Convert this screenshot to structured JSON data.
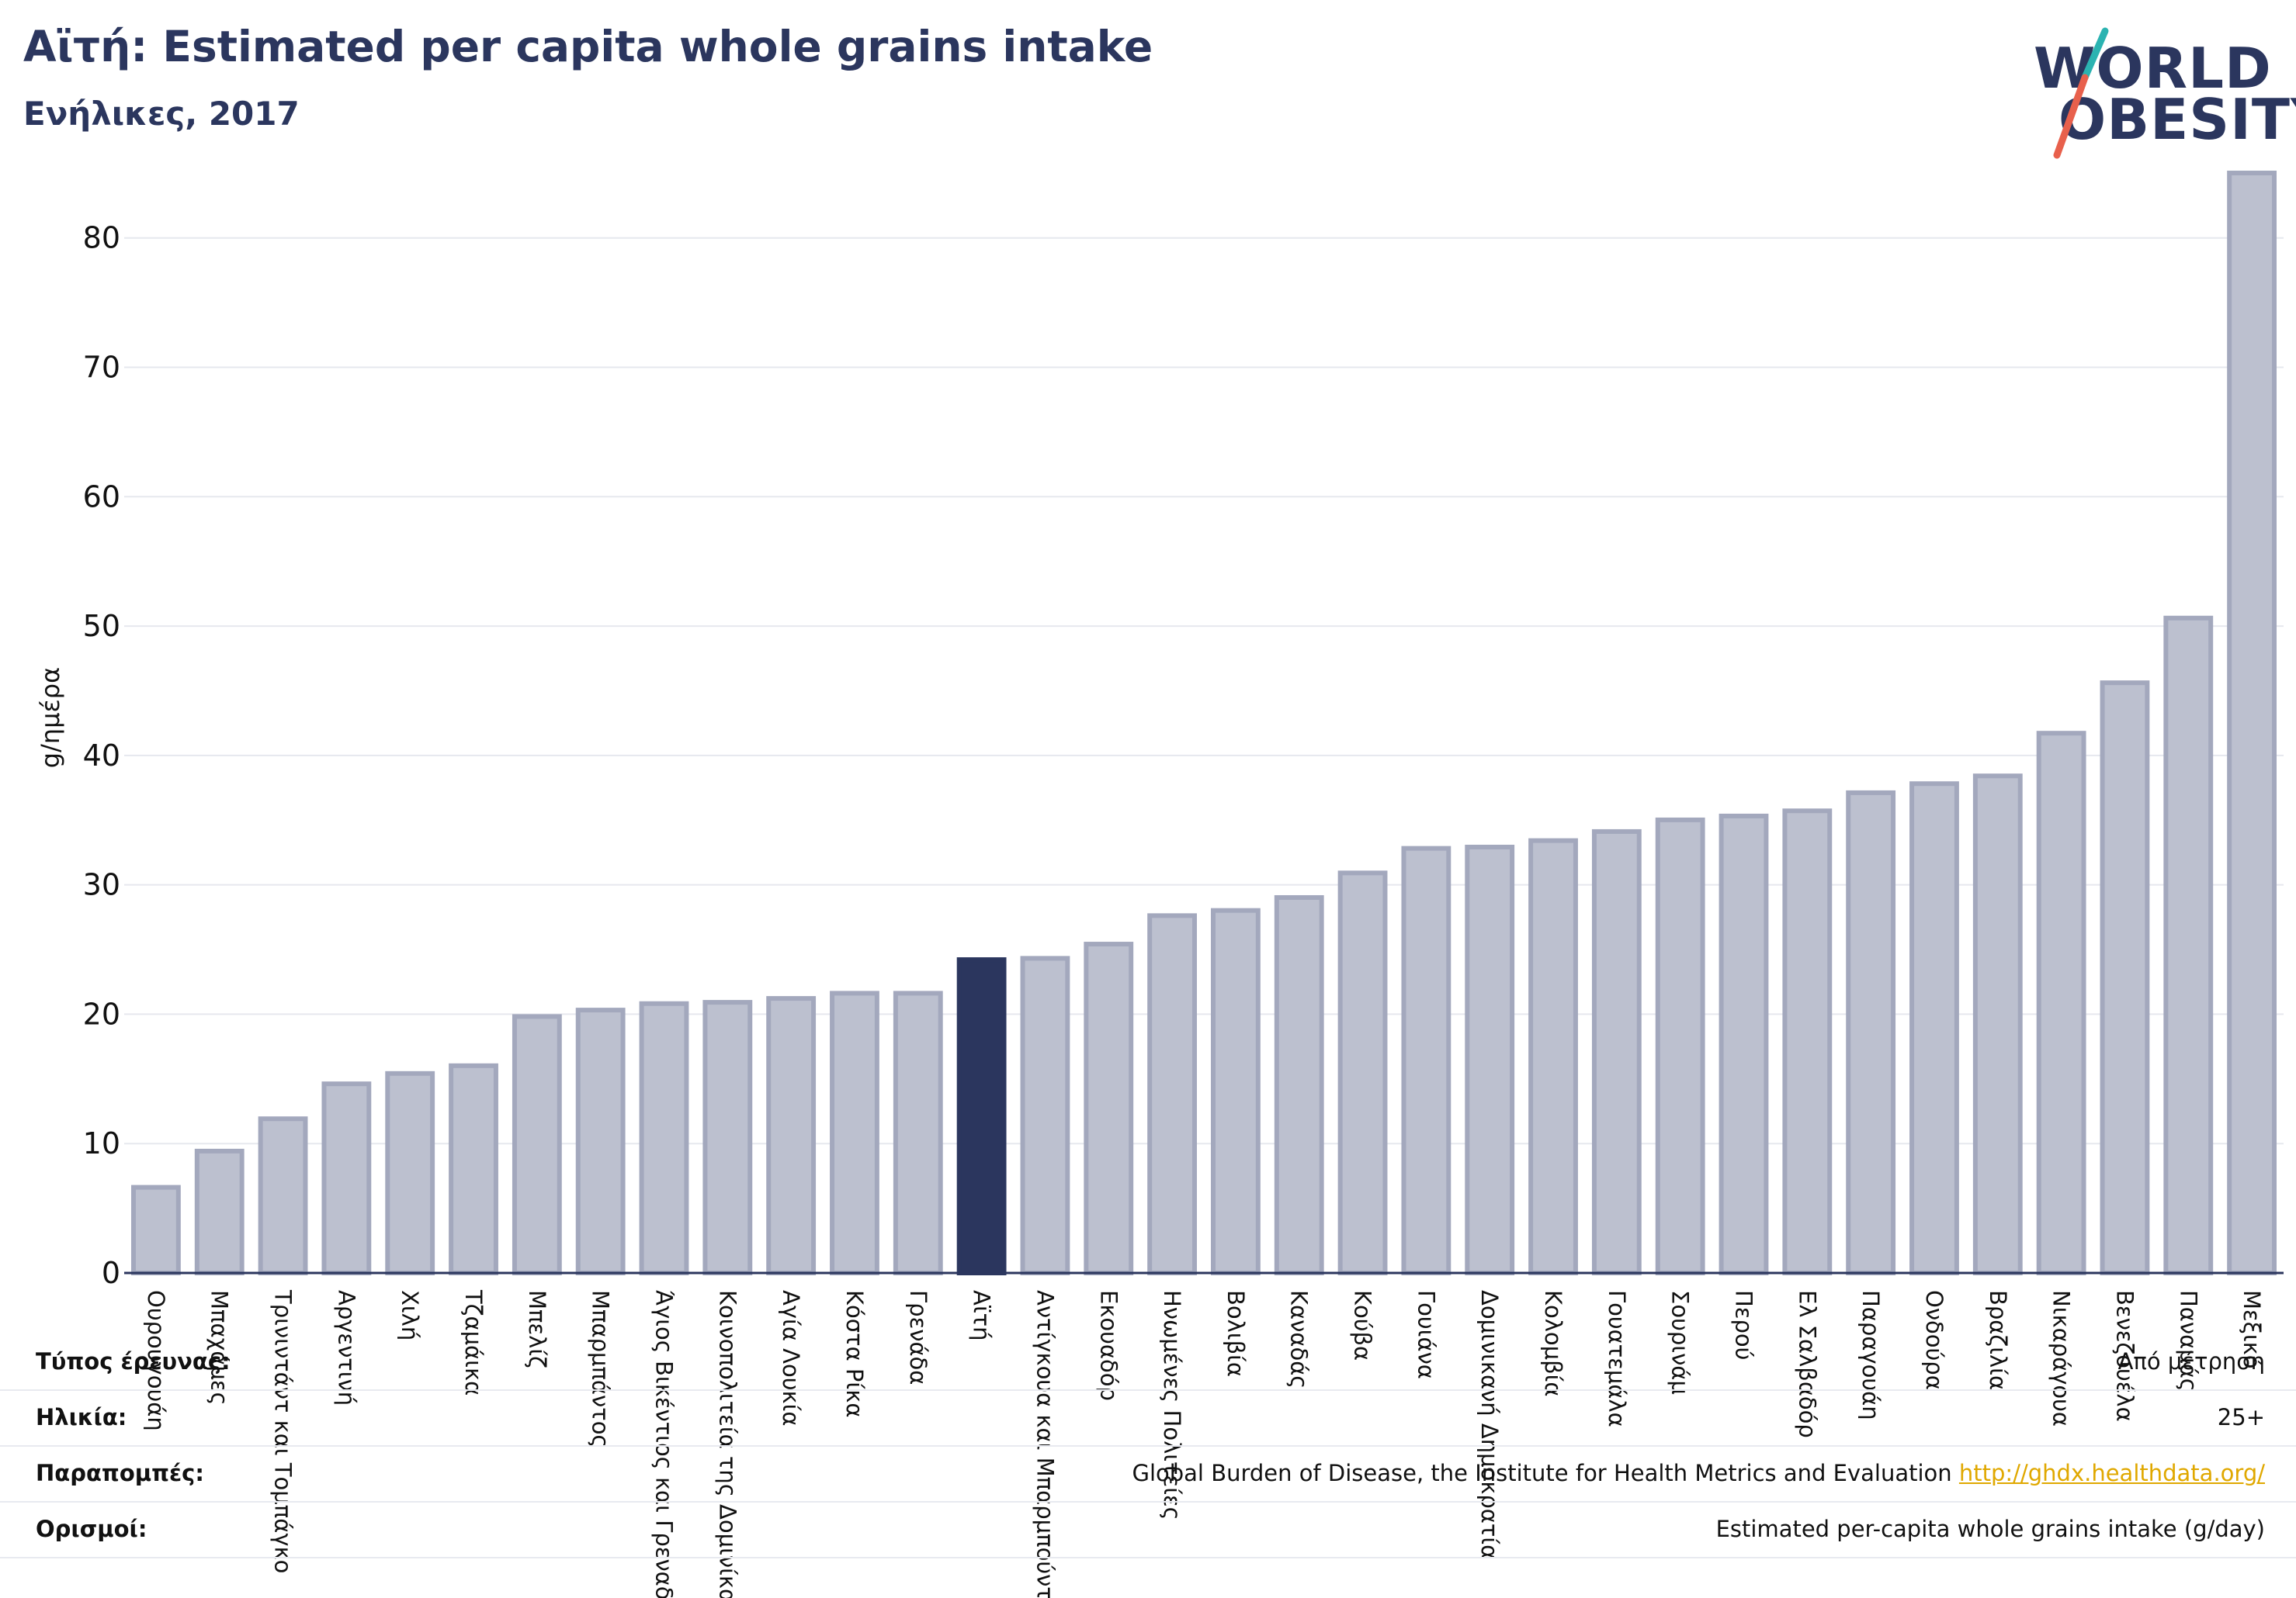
{
  "header": {
    "title": "Αϊτή: Estimated per capita whole grains intake",
    "subtitle": "Ενήλικες, 2017"
  },
  "logo": {
    "line1": "WORLD",
    "line2": "OBESITY",
    "accent_teal": "#2bb3b1",
    "accent_red": "#e8604c"
  },
  "chart_data": {
    "type": "bar",
    "ylabel": "g/ημέρα",
    "ylim": [
      0,
      87
    ],
    "yticks": [
      0,
      10,
      20,
      30,
      40,
      50,
      60,
      70,
      80
    ],
    "grid": true,
    "highlight": "Αϊτή",
    "colors": {
      "bar": "#bcc0cf",
      "bar_edge": "#a3a8bd",
      "highlight": "#2b365e",
      "grid": "#e6e8ee"
    },
    "categories": [
      "Ουρουγουάη",
      "Μπαχάμες",
      "Τρινιντάντ και Τομπάγκο",
      "Αργεντινή",
      "Χιλή",
      "Τζαμάικα",
      "Μπελίζ",
      "Μπαρμπάντος",
      "Άγιος Βικέντιος και Γρεναδίνες",
      "Κοινοπολιτεία της Δομινίκας",
      "Αγία Λουκία",
      "Κόστα Ρίκα",
      "Γρενάδα",
      "Αϊτή",
      "Αντίγκουα και Μπαρμπούντα",
      "Εκουαδόρ",
      "Ηνωμένες Πολιτείες",
      "Βολιβία",
      "Καναδάς",
      "Κούβα",
      "Γουιάνα",
      "Δομινικανή Δημοκρατία",
      "Κολομβία",
      "Γουατεμάλα",
      "Σουρινάμ",
      "Περού",
      "Ελ Σαλβαδόρ",
      "Παραγουάη",
      "Ονδούρα",
      "Βραζιλία",
      "Νικαράγουα",
      "Βενεζουέλα",
      "Παναμάς",
      "Μεξικό"
    ],
    "values": [
      6.8,
      9.6,
      12.1,
      14.8,
      15.6,
      16.2,
      20.0,
      20.5,
      21.0,
      21.1,
      21.4,
      21.8,
      21.8,
      24.4,
      24.5,
      25.6,
      27.8,
      28.2,
      29.2,
      31.1,
      33.0,
      33.1,
      33.6,
      34.3,
      35.2,
      35.5,
      35.9,
      37.3,
      38.0,
      38.6,
      41.9,
      45.8,
      50.8,
      85.2
    ]
  },
  "meta": {
    "rows": [
      {
        "label": "Τύπος έρευνας:",
        "value": "Από μέτρηση"
      },
      {
        "label": "Ηλικία:",
        "value": "25+"
      },
      {
        "label": "Παραπομπές:",
        "value": "Global Burden of Disease, the Institute for Health Metrics and Evaluation",
        "link": "http://ghdx.healthdata.org/"
      },
      {
        "label": "Ορισμοί:",
        "value": "Estimated per-capita whole grains intake (g/day)"
      }
    ]
  }
}
